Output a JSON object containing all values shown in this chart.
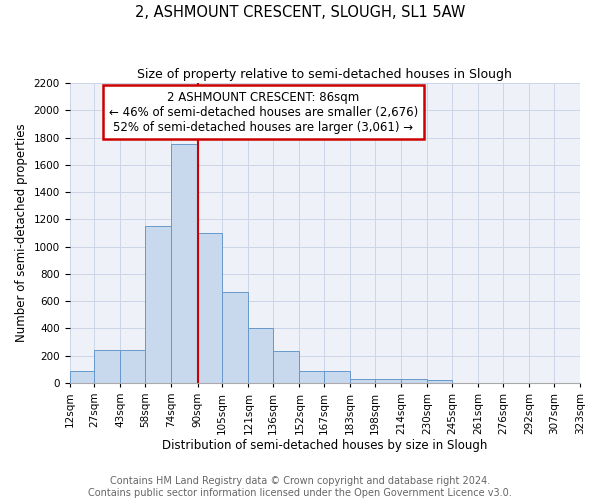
{
  "title": "2, ASHMOUNT CRESCENT, SLOUGH, SL1 5AW",
  "subtitle": "Size of property relative to semi-detached houses in Slough",
  "xlabel": "Distribution of semi-detached houses by size in Slough",
  "ylabel": "Number of semi-detached properties",
  "footer_line1": "Contains HM Land Registry data © Crown copyright and database right 2024.",
  "footer_line2": "Contains public sector information licensed under the Open Government Licence v3.0.",
  "annotation_line1": "2 ASHMOUNT CRESCENT: 86sqm",
  "annotation_line2": "← 46% of semi-detached houses are smaller (2,676)",
  "annotation_line3": "52% of semi-detached houses are larger (3,061) →",
  "bin_edges": [
    12,
    27,
    43,
    58,
    74,
    90,
    105,
    121,
    136,
    152,
    167,
    183,
    198,
    214,
    230,
    245,
    261,
    276,
    292,
    307,
    323
  ],
  "bin_labels": [
    "12sqm",
    "27sqm",
    "43sqm",
    "58sqm",
    "74sqm",
    "90sqm",
    "105sqm",
    "121sqm",
    "136sqm",
    "152sqm",
    "167sqm",
    "183sqm",
    "198sqm",
    "214sqm",
    "230sqm",
    "245sqm",
    "261sqm",
    "276sqm",
    "292sqm",
    "307sqm",
    "323sqm"
  ],
  "counts": [
    90,
    240,
    240,
    1150,
    1750,
    1100,
    670,
    400,
    230,
    90,
    85,
    30,
    30,
    25,
    20,
    0,
    0,
    0,
    0,
    0
  ],
  "bar_color": "#c8d9ee",
  "bar_edge_color": "#6699cc",
  "vline_color": "#cc0000",
  "vline_x": 90,
  "annotation_box_edgecolor": "#cc0000",
  "grid_color": "#ccd6e8",
  "background_color": "#eef2f8",
  "ylim_max": 2200,
  "yticks": [
    0,
    200,
    400,
    600,
    800,
    1000,
    1200,
    1400,
    1600,
    1800,
    2000,
    2200
  ],
  "title_fontsize": 10.5,
  "subtitle_fontsize": 9,
  "axis_label_fontsize": 8.5,
  "tick_fontsize": 7.5,
  "annotation_fontsize": 8.5,
  "footer_fontsize": 7
}
